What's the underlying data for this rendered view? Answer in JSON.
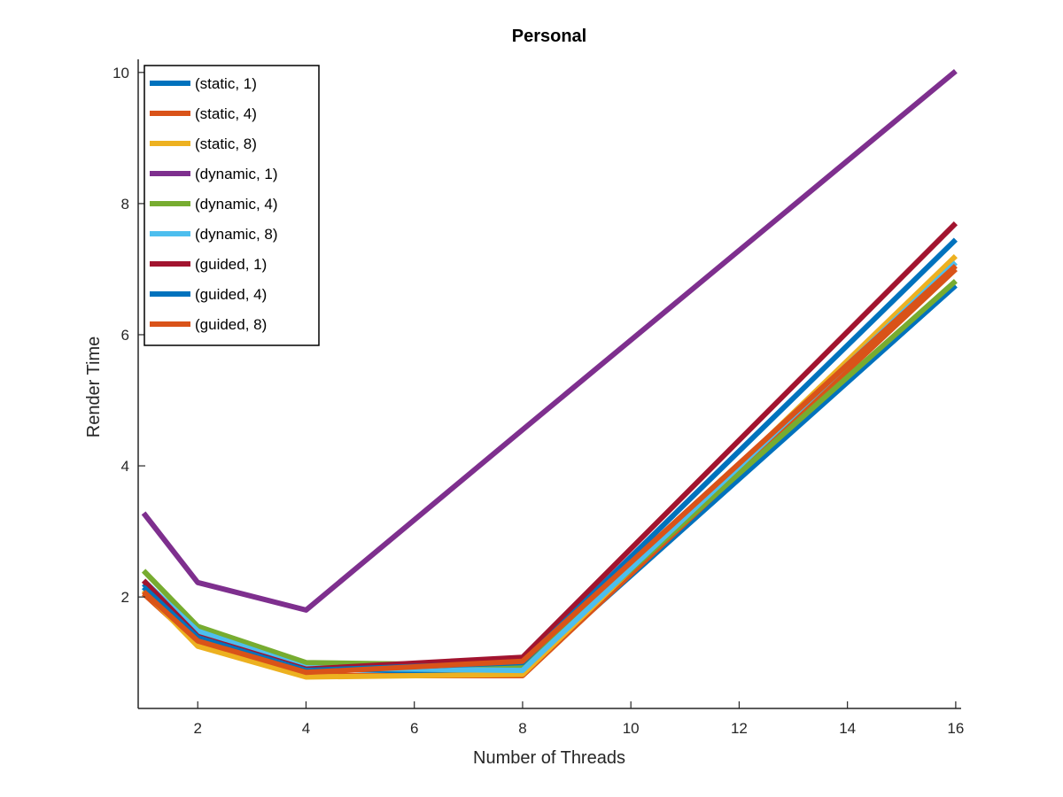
{
  "chart_data": {
    "type": "line",
    "title": "Personal",
    "xlabel": "Number of Threads",
    "ylabel": "Render Time",
    "xlim": [
      0.9,
      16.1
    ],
    "ylim": [
      0.3,
      10.2
    ],
    "xticks": [
      2,
      4,
      6,
      8,
      10,
      12,
      14,
      16
    ],
    "yticks": [
      2,
      4,
      6,
      8,
      10
    ],
    "x": [
      1,
      2,
      4,
      8,
      16
    ],
    "grid": false,
    "legend": "top-left",
    "series": [
      {
        "name": "(static, 1)",
        "color": "#0072BD",
        "values": [
          2.2,
          1.45,
          0.9,
          0.85,
          6.75
        ]
      },
      {
        "name": "(static, 4)",
        "color": "#D95319",
        "values": [
          2.05,
          1.3,
          0.8,
          0.8,
          7.0
        ]
      },
      {
        "name": "(static, 8)",
        "color": "#EDB120",
        "values": [
          2.1,
          1.25,
          0.78,
          0.82,
          7.2
        ]
      },
      {
        "name": "(dynamic, 1)",
        "color": "#7E2F8E",
        "values": [
          3.28,
          2.22,
          1.8,
          4.55,
          10.02
        ]
      },
      {
        "name": "(dynamic, 4)",
        "color": "#77AC30",
        "values": [
          2.4,
          1.55,
          1.0,
          0.95,
          6.82
        ]
      },
      {
        "name": "(dynamic, 8)",
        "color": "#4DBEEE",
        "values": [
          2.25,
          1.48,
          0.92,
          0.88,
          7.1
        ]
      },
      {
        "name": "(guided, 1)",
        "color": "#A2142F",
        "values": [
          2.25,
          1.4,
          0.9,
          1.08,
          7.7
        ]
      },
      {
        "name": "(guided, 4)",
        "color": "#0072BD",
        "values": [
          2.15,
          1.38,
          0.88,
          1.0,
          7.45
        ]
      },
      {
        "name": "(guided, 8)",
        "color": "#D95319",
        "values": [
          2.08,
          1.33,
          0.85,
          1.02,
          7.05
        ]
      }
    ]
  }
}
